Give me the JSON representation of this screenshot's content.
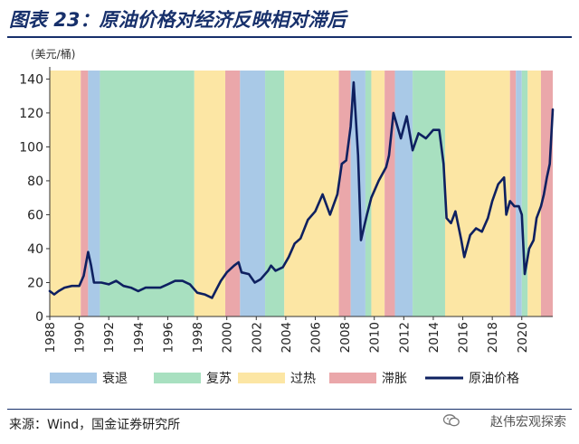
{
  "figure": {
    "title": "图表 23：原油价格对经济反映相对滞后",
    "unit_label": "(美元/桶)",
    "source": "来源：Wind，国金证券研究所",
    "watermark": "赵伟宏观探索",
    "watermark_icon": "wechat-icon"
  },
  "chart_data": {
    "type": "line",
    "title": "原油价格对经济反映相对滞后",
    "ylim": [
      0,
      145
    ],
    "xlim": [
      1988,
      2022.1
    ],
    "y_ticks": [
      0,
      20,
      40,
      60,
      80,
      100,
      120,
      140
    ],
    "x_ticks": [
      "1988",
      "1990",
      "1992",
      "1994",
      "1996",
      "1998",
      "2000",
      "2002",
      "2004",
      "2006",
      "2008",
      "2010",
      "2012",
      "2014",
      "2016",
      "2018",
      "2020"
    ],
    "grid": false,
    "legend_position": "bottom",
    "phase_colors": {
      "衰退": "#a9c9e7",
      "复苏": "#a8e0c0",
      "过热": "#fce6a4",
      "滞胀": "#eaa7aa"
    },
    "phases": [
      {
        "start": 1988.0,
        "end": 1990.1,
        "phase": "过热"
      },
      {
        "start": 1990.1,
        "end": 1990.6,
        "phase": "滞胀"
      },
      {
        "start": 1990.6,
        "end": 1991.4,
        "phase": "衰退"
      },
      {
        "start": 1991.4,
        "end": 1997.8,
        "phase": "复苏"
      },
      {
        "start": 1997.8,
        "end": 1999.9,
        "phase": "过热"
      },
      {
        "start": 1999.9,
        "end": 2000.9,
        "phase": "滞胀"
      },
      {
        "start": 2000.9,
        "end": 2002.6,
        "phase": "衰退"
      },
      {
        "start": 2002.6,
        "end": 2003.9,
        "phase": "复苏"
      },
      {
        "start": 2003.9,
        "end": 2007.6,
        "phase": "过热"
      },
      {
        "start": 2007.6,
        "end": 2008.4,
        "phase": "滞胀"
      },
      {
        "start": 2008.4,
        "end": 2009.4,
        "phase": "衰退"
      },
      {
        "start": 2009.4,
        "end": 2009.8,
        "phase": "复苏"
      },
      {
        "start": 2009.8,
        "end": 2010.7,
        "phase": "过热"
      },
      {
        "start": 2010.7,
        "end": 2011.4,
        "phase": "滞胀"
      },
      {
        "start": 2011.4,
        "end": 2012.6,
        "phase": "衰退"
      },
      {
        "start": 2012.6,
        "end": 2014.8,
        "phase": "复苏"
      },
      {
        "start": 2014.8,
        "end": 2019.2,
        "phase": "过热"
      },
      {
        "start": 2019.2,
        "end": 2019.6,
        "phase": "滞胀"
      },
      {
        "start": 2019.6,
        "end": 2020.0,
        "phase": "衰退"
      },
      {
        "start": 2020.0,
        "end": 2020.4,
        "phase": "复苏"
      },
      {
        "start": 2020.4,
        "end": 2021.3,
        "phase": "过热"
      },
      {
        "start": 2021.3,
        "end": 2022.1,
        "phase": "滞胀"
      }
    ],
    "legend": [
      "衰退",
      "复苏",
      "过热",
      "滞胀",
      "原油价格"
    ],
    "series": [
      {
        "name": "原油价格",
        "color": "#0e2060",
        "x": [
          1988.0,
          1988.3,
          1988.6,
          1989.0,
          1989.5,
          1990.0,
          1990.3,
          1990.6,
          1990.8,
          1991.0,
          1991.5,
          1992.0,
          1992.5,
          1993.0,
          1993.5,
          1994.0,
          1994.5,
          1995.0,
          1995.5,
          1996.0,
          1996.5,
          1997.0,
          1997.5,
          1998.0,
          1998.5,
          1999.0,
          1999.3,
          1999.6,
          2000.0,
          2000.5,
          2000.8,
          2001.0,
          2001.5,
          2001.9,
          2002.3,
          2002.8,
          2003.0,
          2003.3,
          2003.8,
          2004.2,
          2004.6,
          2005.0,
          2005.5,
          2006.0,
          2006.5,
          2007.0,
          2007.5,
          2007.8,
          2008.1,
          2008.4,
          2008.6,
          2008.9,
          2009.1,
          2009.5,
          2009.8,
          2010.3,
          2010.8,
          2011.0,
          2011.3,
          2011.8,
          2012.2,
          2012.6,
          2013.0,
          2013.5,
          2014.0,
          2014.4,
          2014.7,
          2014.9,
          2015.2,
          2015.5,
          2015.9,
          2016.1,
          2016.5,
          2016.9,
          2017.3,
          2017.7,
          2018.0,
          2018.4,
          2018.8,
          2018.95,
          2019.2,
          2019.5,
          2019.8,
          2020.0,
          2020.2,
          2020.3,
          2020.5,
          2020.8,
          2021.0,
          2021.3,
          2021.5,
          2021.7,
          2021.9,
          2022.1
        ],
        "values": [
          15,
          13,
          15,
          17,
          18,
          18,
          24,
          38,
          30,
          20,
          20,
          19,
          21,
          18,
          17,
          15,
          17,
          17,
          17,
          19,
          21,
          21,
          19,
          14,
          13,
          11,
          16,
          21,
          26,
          30,
          32,
          26,
          25,
          20,
          22,
          27,
          30,
          27,
          29,
          35,
          43,
          46,
          57,
          62,
          72,
          60,
          72,
          90,
          92,
          112,
          138,
          95,
          45,
          60,
          70,
          80,
          88,
          95,
          120,
          105,
          118,
          98,
          108,
          105,
          110,
          110,
          90,
          58,
          55,
          62,
          45,
          35,
          48,
          52,
          50,
          58,
          68,
          78,
          82,
          60,
          68,
          65,
          65,
          60,
          25,
          30,
          40,
          45,
          58,
          65,
          72,
          82,
          90,
          122
        ]
      }
    ]
  }
}
